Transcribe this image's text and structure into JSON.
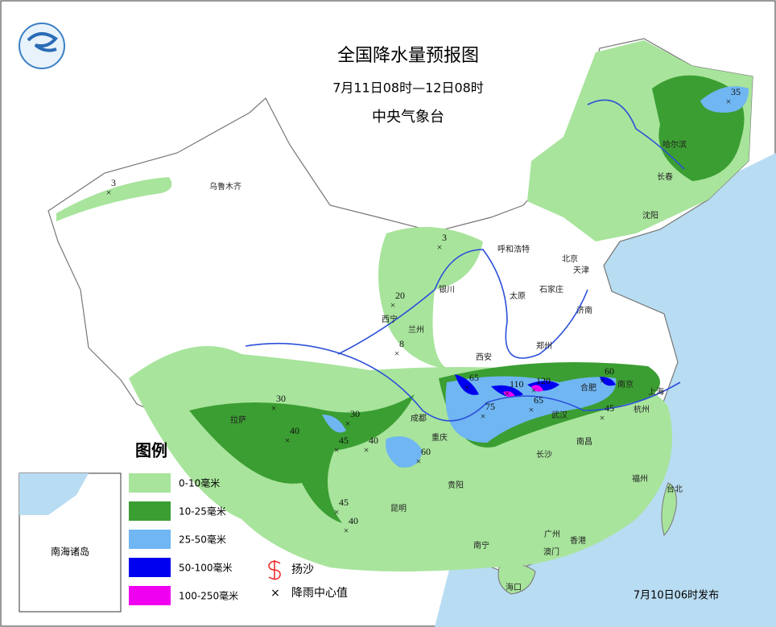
{
  "header": {
    "title": "全国降水量预报图",
    "period": "7月11日08时—12日08时",
    "issuer": "中央气象台"
  },
  "legend": {
    "title": "图例",
    "items": [
      {
        "label": "0-10毫米",
        "color": "#a8e49c"
      },
      {
        "label": "10-25毫米",
        "color": "#3b9e32"
      },
      {
        "label": "25-50毫米",
        "color": "#6fb6f2"
      },
      {
        "label": "50-100毫米",
        "color": "#0000f0"
      },
      {
        "label": "100-250毫米",
        "color": "#f000f0"
      }
    ],
    "symbols": [
      "扬沙",
      "降雨中心值"
    ]
  },
  "cities": [
    "乌鲁木齐",
    "哈尔滨",
    "长春",
    "沈阳",
    "呼和浩特",
    "北京",
    "天津",
    "石家庄",
    "太原",
    "银川",
    "西宁",
    "兰州",
    "济南",
    "郑州",
    "西安",
    "合肥",
    "南京",
    "上海",
    "杭州",
    "武汉",
    "成都",
    "重庆",
    "拉萨",
    "长沙",
    "南昌",
    "福州",
    "台北",
    "贵阳",
    "昆明",
    "南宁",
    "广州",
    "香港",
    "澳门",
    "海口"
  ],
  "rain_centers": [
    35,
    3,
    3,
    20,
    8,
    65,
    110,
    120,
    60,
    65,
    75,
    45,
    30,
    40,
    30,
    45,
    40,
    60,
    45,
    40
  ],
  "inset": "南海诸岛",
  "footer": "7月10日06时发布"
}
